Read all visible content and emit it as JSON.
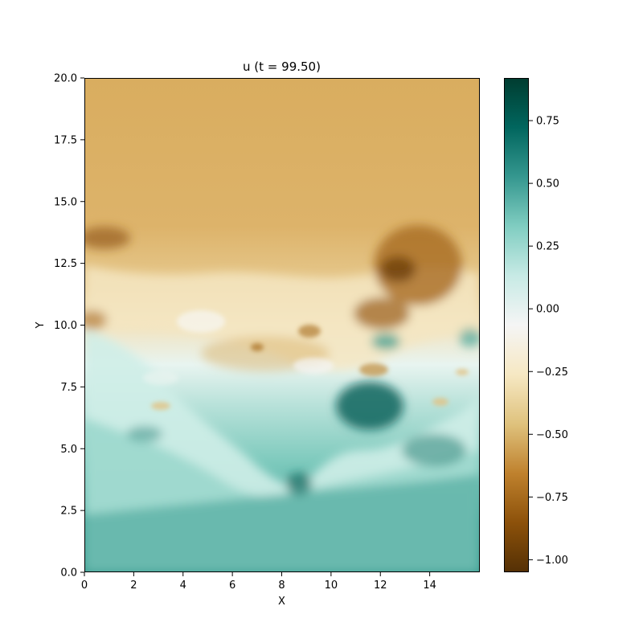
{
  "chart_data": {
    "type": "heatmap",
    "title": "u (t = 99.50)",
    "xlabel": "X",
    "ylabel": "Y",
    "xlim": [
      0,
      16
    ],
    "ylim": [
      0,
      20
    ],
    "xticks": [
      0,
      2,
      4,
      6,
      8,
      10,
      12,
      14
    ],
    "xtick_labels": [
      "0",
      "2",
      "4",
      "6",
      "8",
      "10",
      "12",
      "14"
    ],
    "yticks": [
      0,
      2.5,
      5,
      7.5,
      10,
      12.5,
      15,
      17.5,
      20
    ],
    "ytick_labels": [
      "0.0",
      "2.5",
      "5.0",
      "7.5",
      "10.0",
      "12.5",
      "15.0",
      "17.5",
      "20.0"
    ],
    "colorbar": {
      "colormap": "BrBG",
      "vmin": -1.05,
      "vmax": 0.92,
      "ticks": [
        -1.0,
        -0.75,
        -0.5,
        -0.25,
        0.0,
        0.25,
        0.5,
        0.75
      ],
      "tick_labels": [
        "−1.00",
        "−0.75",
        "−0.50",
        "−0.25",
        "0.00",
        "0.25",
        "0.50",
        "0.75"
      ],
      "stops": [
        {
          "t": 0.0,
          "color": "#543005"
        },
        {
          "t": 0.1,
          "color": "#8c510a"
        },
        {
          "t": 0.2,
          "color": "#bf812d"
        },
        {
          "t": 0.3,
          "color": "#dfc27d"
        },
        {
          "t": 0.4,
          "color": "#f6e8c3"
        },
        {
          "t": 0.5,
          "color": "#f5f5f5"
        },
        {
          "t": 0.6,
          "color": "#c7eae5"
        },
        {
          "t": 0.7,
          "color": "#80cdc1"
        },
        {
          "t": 0.8,
          "color": "#35978f"
        },
        {
          "t": 0.9,
          "color": "#01665e"
        },
        {
          "t": 1.0,
          "color": "#003c30"
        }
      ]
    },
    "field_description_levels": [
      {
        "y_from": 14.0,
        "y_to": 20.0,
        "u": -0.45
      },
      {
        "y_from": 11.0,
        "y_to": 14.0,
        "u": -0.35
      },
      {
        "y_from": 8.0,
        "y_to": 11.0,
        "u": -0.15
      },
      {
        "y_from": 5.0,
        "y_to": 8.0,
        "u": 0.25
      },
      {
        "y_from": 0.0,
        "y_to": 5.0,
        "u": 0.5
      }
    ]
  }
}
